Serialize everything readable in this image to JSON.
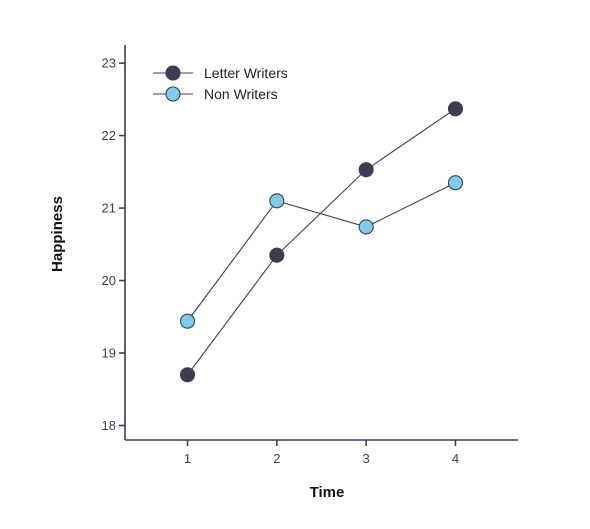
{
  "chart_data": {
    "type": "line",
    "title": "",
    "xlabel": "Time",
    "ylabel": "Happiness",
    "categories": [
      "1",
      "2",
      "3",
      "4"
    ],
    "x": [
      1,
      2,
      3,
      4
    ],
    "xlim": [
      0.3,
      4.7
    ],
    "ylim": [
      17.8,
      23.25
    ],
    "yticks": [
      18,
      19,
      20,
      21,
      22,
      23
    ],
    "grid": false,
    "legend_position": "top-left",
    "series": [
      {
        "name": "Letter Writers",
        "values": [
          18.7,
          20.35,
          21.53,
          22.37
        ],
        "color": "#3b3e52",
        "marker": "filled-circle-dark"
      },
      {
        "name": "Non Writers",
        "values": [
          19.44,
          21.1,
          20.74,
          21.35
        ],
        "color": "#7ecbea",
        "marker": "filled-circle-light"
      }
    ]
  }
}
